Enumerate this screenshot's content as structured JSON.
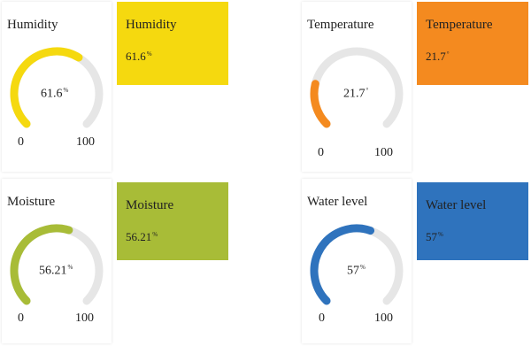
{
  "widgets": [
    {
      "gauge_title": "Humidity",
      "tile_title": "Humidity",
      "value": 61.6,
      "value_text": "61.6",
      "unit": "%",
      "min": "0",
      "max": "100",
      "min_value": 0,
      "max_value": 100,
      "color": "#f5d90f"
    },
    {
      "gauge_title": "Temperature",
      "tile_title": "Temperature",
      "value": 21.7,
      "value_text": "21.7",
      "unit": "°",
      "min": "0",
      "max": "100",
      "min_value": 0,
      "max_value": 100,
      "color": "#f48a1f"
    },
    {
      "gauge_title": "Moisture",
      "tile_title": "Moisture",
      "value": 56.21,
      "value_text": "56.21",
      "unit": "%",
      "min": "0",
      "max": "100",
      "min_value": 0,
      "max_value": 100,
      "color": "#a8bc37"
    },
    {
      "gauge_title": "Water level",
      "tile_title": "Water level",
      "value": 57,
      "value_text": "57",
      "unit": "%",
      "min": "0",
      "max": "100",
      "min_value": 0,
      "max_value": 100,
      "color": "#2f73bd"
    }
  ]
}
